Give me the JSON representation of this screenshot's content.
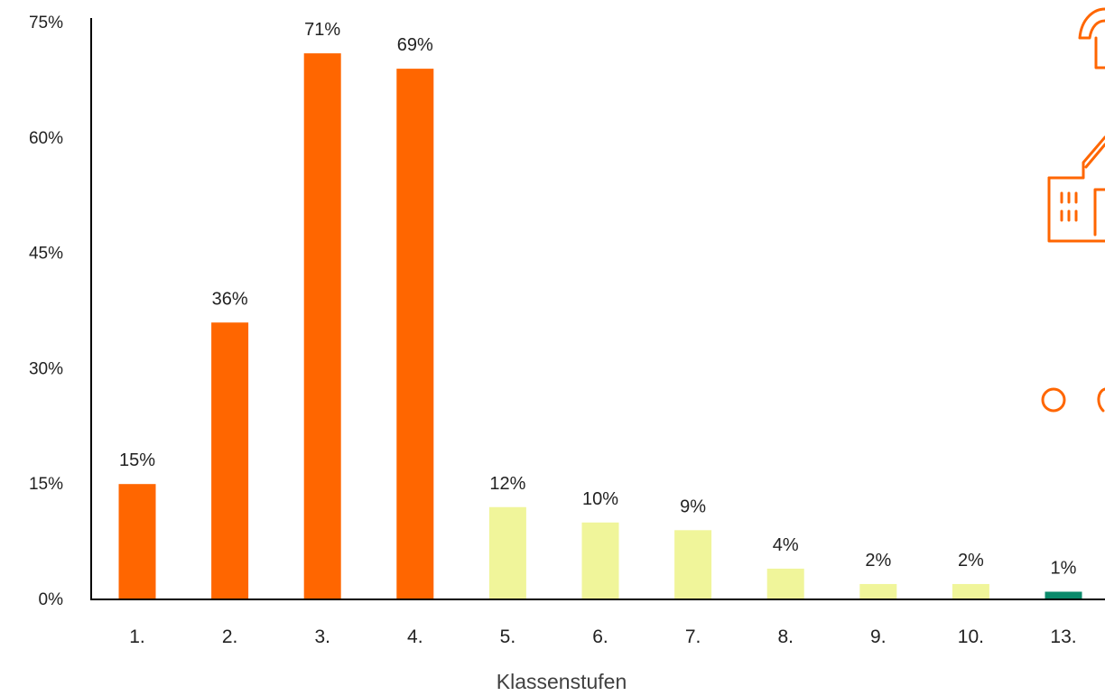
{
  "chart_data": {
    "type": "bar",
    "categories": [
      "1.",
      "2.",
      "3.",
      "4.",
      "5.",
      "6.",
      "7.",
      "8.",
      "9.",
      "10.",
      "13."
    ],
    "values": [
      15,
      36,
      71,
      69,
      12,
      10,
      9,
      4,
      2,
      2,
      1
    ],
    "data_labels": [
      "15%",
      "36%",
      "71%",
      "69%",
      "12%",
      "10%",
      "9%",
      "4%",
      "2%",
      "2%",
      "1%"
    ],
    "bar_colors": [
      "#ff6600",
      "#ff6600",
      "#ff6600",
      "#ff6600",
      "#f0f59a",
      "#f0f59a",
      "#f0f59a",
      "#f0f59a",
      "#f0f59a",
      "#f0f59a",
      "#0b8a6b"
    ],
    "title": "",
    "xlabel": "Klassenstufen",
    "ylabel": "",
    "ylim": [
      0,
      75
    ],
    "yticks": [
      0,
      15,
      30,
      45,
      60,
      75
    ],
    "ytick_labels": [
      "0%",
      "15%",
      "30%",
      "45%",
      "60%",
      "75%"
    ],
    "grid": false,
    "legend": "none"
  },
  "decoration": {
    "icons": [
      "backpack-icon",
      "school-building-icon",
      "circles-icon"
    ],
    "color": "#ff6600"
  }
}
